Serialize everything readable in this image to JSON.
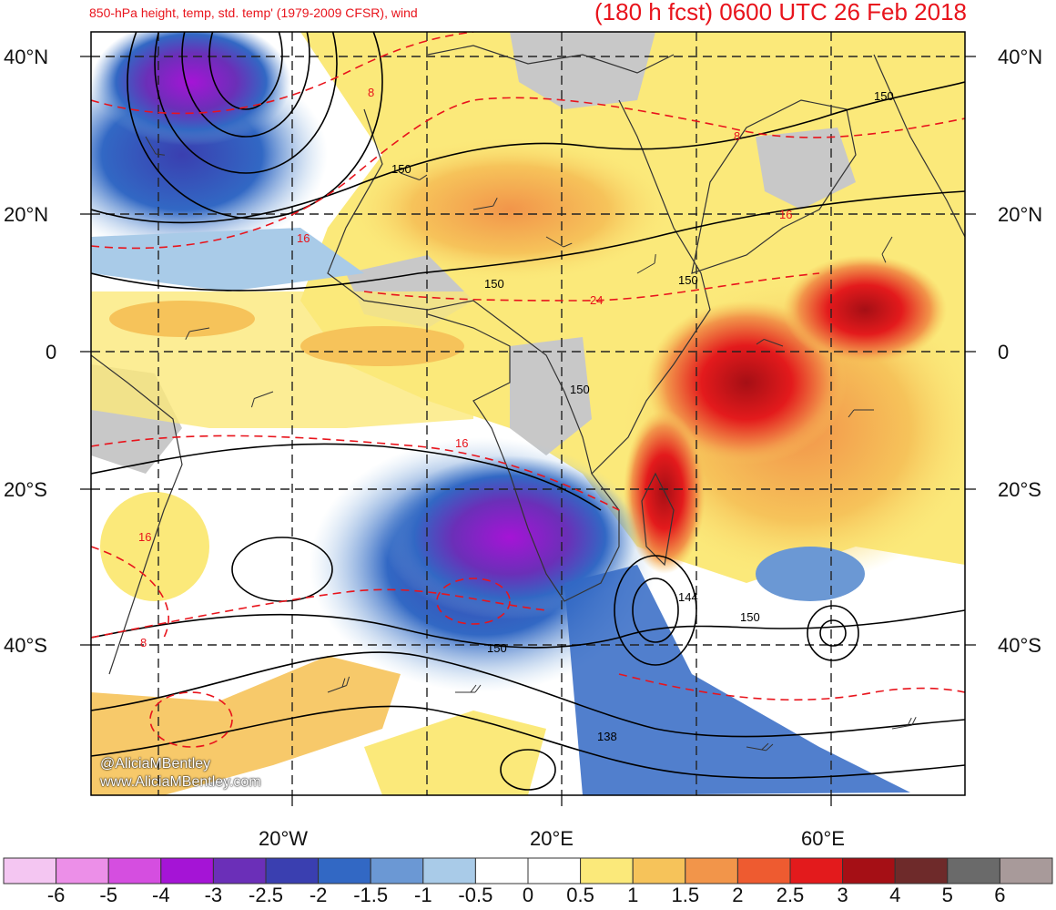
{
  "header": {
    "subtitle": "850-hPa height, temp, std. temp' (1979-2009 CFSR), wind",
    "title": "(180 h fcst) 0600 UTC 26 Feb 2018"
  },
  "axes": {
    "lat_left": [
      "40°N",
      "20°N",
      "0",
      "20°S",
      "40°S"
    ],
    "lat_right": [
      "40°N",
      "20°N",
      "0",
      "20°S",
      "40°S"
    ],
    "lon": [
      "20°W",
      "20°E",
      "60°E"
    ]
  },
  "contour_labels": {
    "height": [
      "150",
      "150",
      "150",
      "150",
      "150",
      "150",
      "144",
      "150",
      "138"
    ],
    "temperature": [
      "8",
      "8",
      "16",
      "16",
      "24",
      "16",
      "16",
      "8"
    ]
  },
  "credits": {
    "handle": "@AliciaMBentley",
    "site": "www.AliciaMBentley.com"
  },
  "colorbar": {
    "labels": [
      "-6",
      "-5",
      "-4",
      "-3",
      "-2.5",
      "-2",
      "-1.5",
      "-1",
      "-0.5",
      "0",
      "0.5",
      "1",
      "1.5",
      "2",
      "2.5",
      "3",
      "4",
      "5",
      "6"
    ],
    "colors": [
      "#f4c6f2",
      "#ec8fe8",
      "#d54ee0",
      "#a514d6",
      "#6b2fb8",
      "#3a3fb0",
      "#3268c4",
      "#6b98d4",
      "#a9cbe8",
      "#ffffff",
      "#ffffff",
      "#fbe97a",
      "#f6c35a",
      "#f2954a",
      "#ee5b30",
      "#e31a1c",
      "#a50f15",
      "#6e2a2a",
      "#6a6a6a",
      "#a89a9a"
    ]
  },
  "colors": {
    "title": "#e8141c",
    "height_contour": "#000000",
    "temp_contour": "#e8141c"
  }
}
